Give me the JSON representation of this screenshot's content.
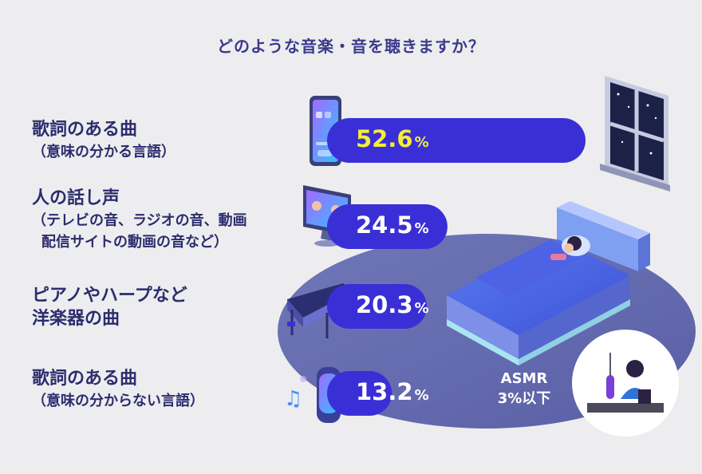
{
  "title": "どのような音楽・音を聴きますか？",
  "chart_data": {
    "type": "bar",
    "title": "どのような音楽・音を聴きますか？",
    "categories": [
      "歌詞のある曲（意味の分かる言語）",
      "人の話し声（テレビの音、ラジオの音、動画配信サイトの動画の音など）",
      "ピアノやハープなど洋楽器の曲",
      "歌詞のある曲（意味の分からない言語）"
    ],
    "values": [
      52.6,
      24.5,
      20.3,
      13.2
    ],
    "unit": "%",
    "labels": [
      {
        "main": "歌詞のある曲",
        "sub": "（意味の分かる言語）",
        "sub2": ""
      },
      {
        "main": "人の話し声",
        "sub": "（テレビの音、ラジオの音、動画",
        "sub2": "配信サイトの動画の音など）"
      },
      {
        "main": "ピアノやハープなど",
        "sub": "洋楽器の曲",
        "sub2": ""
      },
      {
        "main": "歌詞のある曲",
        "sub": "（意味の分からない言語）",
        "sub2": ""
      }
    ],
    "value_labels": [
      "52.6",
      "24.5",
      "20.3",
      "13.2"
    ],
    "highlight_index": 0,
    "note": {
      "line1": "ASMR",
      "line2": "3%以下"
    },
    "colors": {
      "bar": "#3a2fd6",
      "highlight_text": "#f3ee3a",
      "ellipse": "#7477b8",
      "title": "#3b3a8c",
      "label": "#2c2c6e"
    }
  }
}
